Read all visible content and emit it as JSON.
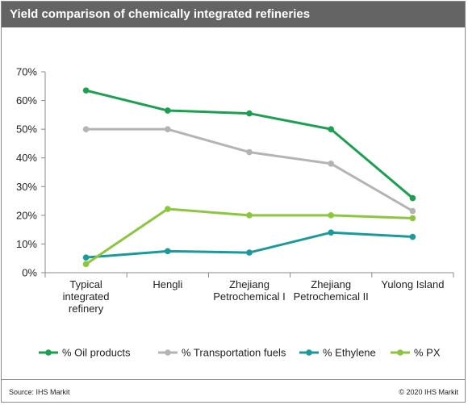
{
  "title": "Yield comparison of chemically integrated refineries",
  "source": "Source: IHS Markit",
  "copyright": "© 2020 IHS Markit",
  "colors": {
    "title_bar": "#646464",
    "oil_products": "#1aa050",
    "transportation_fuels": "#b4b4b4",
    "ethylene": "#1a9a9a",
    "px": "#8cc63e"
  },
  "chart_data": {
    "type": "line",
    "title": "",
    "xlabel": "",
    "ylabel": "",
    "categories": [
      [
        "Typical",
        "integrated",
        "refinery"
      ],
      [
        "Hengli"
      ],
      [
        "Zhejiang",
        "Petrochemical I"
      ],
      [
        "Zhejiang",
        "Petrochemical II"
      ],
      [
        "Yulong Island"
      ]
    ],
    "y_ticks": [
      "0%",
      "10%",
      "20%",
      "30%",
      "40%",
      "50%",
      "60%",
      "70%"
    ],
    "ylim": [
      0,
      70
    ],
    "grid": false,
    "legend_position": "bottom",
    "series": [
      {
        "name": "% Oil products",
        "color": "#1aa050",
        "values": [
          63.5,
          56.5,
          55.5,
          50,
          26
        ]
      },
      {
        "name": "% Transportation fuels",
        "color": "#b4b4b4",
        "values": [
          50,
          50,
          42,
          38,
          21.5
        ]
      },
      {
        "name": "% Ethylene",
        "color": "#1a9a9a",
        "values": [
          5.3,
          7.5,
          7,
          14,
          12.5
        ]
      },
      {
        "name": "% PX",
        "color": "#8cc63e",
        "values": [
          3,
          22.2,
          20,
          20,
          19
        ]
      }
    ]
  }
}
